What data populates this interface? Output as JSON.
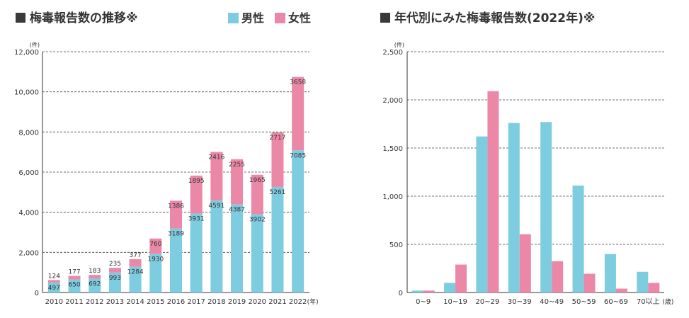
{
  "colors": {
    "male": "#7ecce0",
    "female": "#ec88a7",
    "title_square": "#3a3a3a",
    "axis": "#333333",
    "grid": "#444444"
  },
  "chart_data": [
    {
      "type": "bar",
      "stacked": true,
      "title": "梅毒報告数の推移※",
      "unit_label": "(件)",
      "x_unit": "(年)",
      "categories": [
        "2010",
        "2011",
        "2012",
        "2013",
        "2014",
        "2015",
        "2016",
        "2017",
        "2018",
        "2019",
        "2020",
        "2021",
        "2022"
      ],
      "ylim": [
        0,
        12000
      ],
      "yticks": [
        0,
        2000,
        4000,
        6000,
        8000,
        10000,
        12000
      ],
      "ytick_labels": [
        "0",
        "2,000",
        "4,000",
        "6,000",
        "8,000",
        "10,000",
        "12,000"
      ],
      "grid": true,
      "legend": "top-right",
      "series": [
        {
          "name": "男性",
          "color": "#7ecce0",
          "values": [
            497,
            650,
            692,
            993,
            1284,
            1930,
            3189,
            3931,
            4591,
            4387,
            3902,
            5261,
            7085
          ]
        },
        {
          "name": "女性",
          "color": "#ec88a7",
          "values": [
            124,
            177,
            183,
            235,
            377,
            760,
            1386,
            1895,
            2416,
            2255,
            1965,
            2717,
            3658
          ]
        }
      ]
    },
    {
      "type": "bar",
      "grouped": true,
      "title": "年代別にみた梅毒報告数(2022年)※",
      "unit_label": "(件)",
      "x_unit": "(歳)",
      "categories": [
        "0~9",
        "10~19",
        "20~29",
        "30~39",
        "40~49",
        "50~59",
        "60~69",
        "70以上"
      ],
      "ylim": [
        0,
        2500
      ],
      "yticks": [
        0,
        500,
        1000,
        1500,
        2000,
        2500
      ],
      "ytick_labels": [
        "0",
        "500",
        "1,000",
        "1,500",
        "2,000",
        "2,500"
      ],
      "grid": true,
      "series": [
        {
          "name": "男性",
          "color": "#7ecce0",
          "values": [
            20,
            100,
            1620,
            1760,
            1770,
            1110,
            400,
            215
          ]
        },
        {
          "name": "女性",
          "color": "#ec88a7",
          "values": [
            20,
            290,
            2090,
            605,
            325,
            195,
            40,
            100
          ]
        }
      ]
    }
  ]
}
